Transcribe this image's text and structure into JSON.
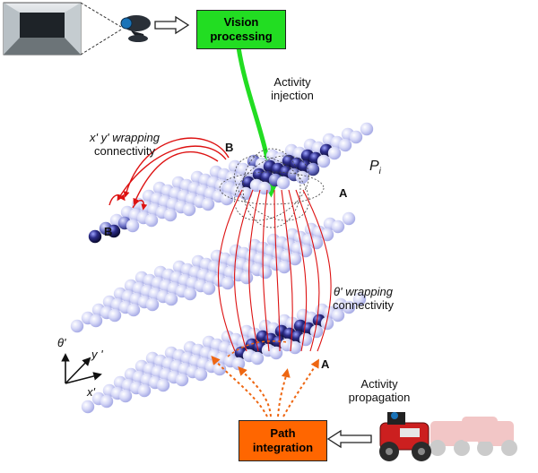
{
  "vision_box": {
    "line1": "Vision",
    "line2": "processing",
    "color": "#22dd22"
  },
  "path_box": {
    "line1": "Path",
    "line2": "integration",
    "color": "#ff6600"
  },
  "labels": {
    "activity_injection_1": "Activity",
    "activity_injection_2": "injection",
    "xy_wrap_1": "x' y' wrapping",
    "xy_wrap_2": "connectivity",
    "theta_wrap_1": "θ' wrapping",
    "theta_wrap_2": "connectivity",
    "activity_propagation_1": "Activity",
    "activity_propagation_2": "propagation",
    "pi_main": "P",
    "pi_sub": "i",
    "node_a_top": "A",
    "node_a_bottom": "A",
    "node_b_right": "B",
    "node_b_left": "B",
    "axis_theta": "θ'",
    "axis_y": "y '",
    "axis_x": "x'"
  },
  "colors": {
    "neuron_light": "#c9ccf4",
    "neuron_active": "#2a2a7a",
    "connection_red": "#dd1111",
    "propagation_orange": "#ee6611"
  }
}
